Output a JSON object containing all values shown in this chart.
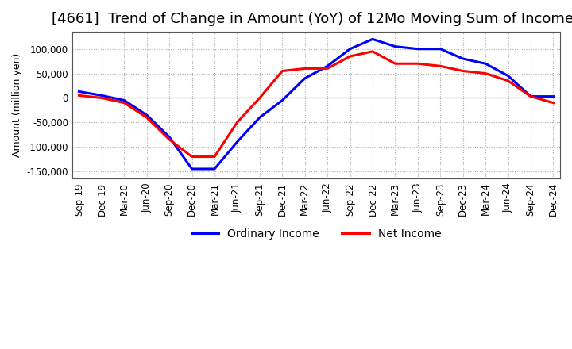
{
  "title": "[4661]  Trend of Change in Amount (YoY) of 12Mo Moving Sum of Incomes",
  "ylabel": "Amount (million yen)",
  "background_color": "#ffffff",
  "grid_color": "#aaaaaa",
  "x_labels": [
    "Sep-19",
    "Dec-19",
    "Mar-20",
    "Jun-20",
    "Sep-20",
    "Dec-20",
    "Mar-21",
    "Jun-21",
    "Sep-21",
    "Dec-21",
    "Mar-22",
    "Jun-22",
    "Sep-22",
    "Dec-22",
    "Mar-23",
    "Jun-23",
    "Sep-23",
    "Dec-23",
    "Mar-24",
    "Jun-24",
    "Sep-24",
    "Dec-24"
  ],
  "ordinary_income": [
    13000,
    5000,
    -5000,
    -35000,
    -80000,
    -145000,
    -145000,
    -90000,
    -40000,
    -5000,
    40000,
    65000,
    100000,
    120000,
    105000,
    100000,
    100000,
    80000,
    70000,
    45000,
    3000,
    3000
  ],
  "net_income": [
    5000,
    0,
    -10000,
    -40000,
    -85000,
    -120000,
    -120000,
    -50000,
    0,
    55000,
    60000,
    60000,
    85000,
    95000,
    70000,
    70000,
    65000,
    55000,
    50000,
    35000,
    3000,
    -10000
  ],
  "ordinary_color": "#0000ff",
  "net_color": "#ff0000",
  "ylim": [
    -165000,
    135000
  ],
  "yticks": [
    -150000,
    -100000,
    -50000,
    0,
    50000,
    100000
  ],
  "line_width": 2.2,
  "title_fontsize": 13,
  "axis_fontsize": 9,
  "tick_fontsize": 8.5,
  "legend_fontsize": 10
}
